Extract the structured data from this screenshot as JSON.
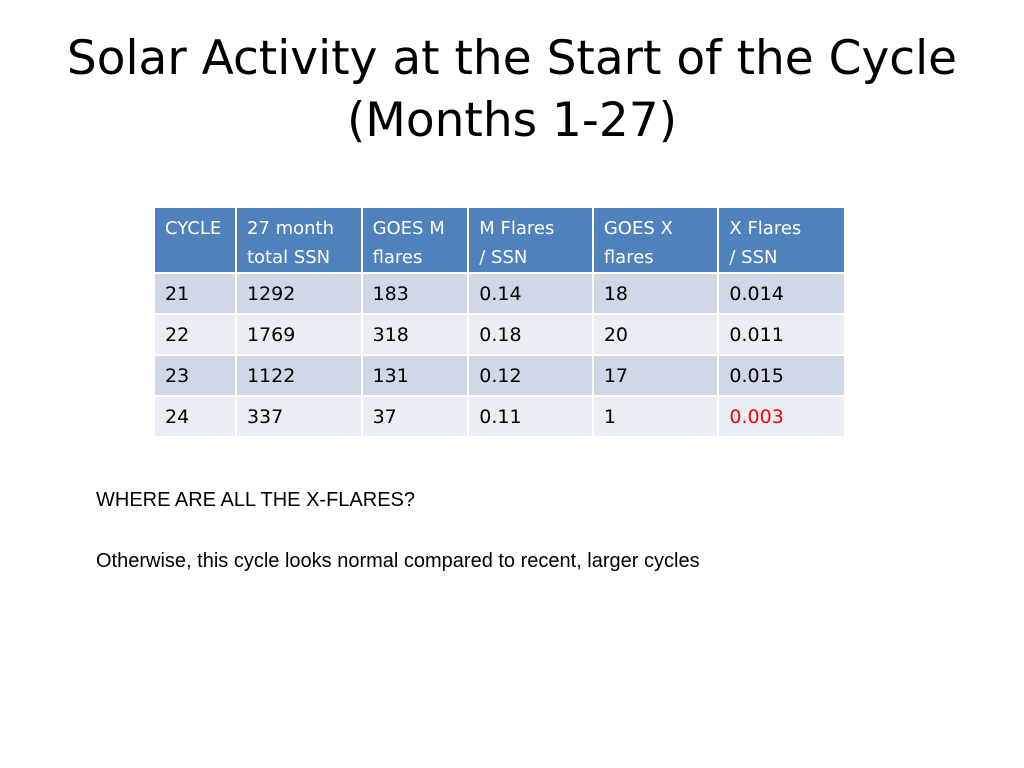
{
  "slide": {
    "title": "Solar Activity at the Start of the Cycle (Months 1-27)"
  },
  "table": {
    "headers": [
      [
        "CYCLE",
        ""
      ],
      [
        "27 month",
        "total SSN"
      ],
      [
        "GOES M",
        "flares"
      ],
      [
        "M Flares",
        "/ SSN"
      ],
      [
        "GOES X",
        "flares"
      ],
      [
        "X Flares",
        "/ SSN"
      ]
    ],
    "rows": [
      [
        "21",
        "1292",
        "183",
        "0.14",
        "18",
        "0.014"
      ],
      [
        "22",
        "1769",
        "318",
        "0.18",
        "20",
        "0.011"
      ],
      [
        "23",
        "1122",
        "131",
        "0.12",
        "17",
        "0.015"
      ],
      [
        "24",
        "337",
        "37",
        "0.11",
        "1",
        "0.003"
      ]
    ],
    "highlight_cell": {
      "row": 3,
      "col": 5,
      "color": "#ff0000"
    },
    "header_color": "#4f81bd",
    "row_colors": [
      "#d0d8e8",
      "#e9edf4"
    ]
  },
  "notes": [
    "WHERE ARE ALL THE X-FLARES?",
    "Otherwise, this cycle looks normal compared to recent, larger cycles"
  ]
}
